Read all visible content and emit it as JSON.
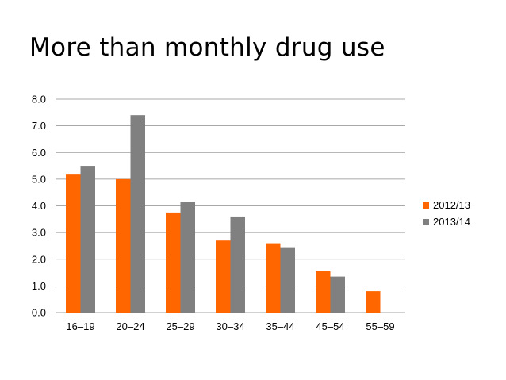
{
  "chart_data": {
    "type": "bar",
    "title": "More than monthly drug use",
    "categories": [
      "16–19",
      "20–24",
      "25–29",
      "30–34",
      "35–44",
      "45–54",
      "55–59"
    ],
    "series": [
      {
        "name": "2012/13",
        "color": "#ff6600",
        "values": [
          5.2,
          5.0,
          3.75,
          2.7,
          2.6,
          1.55,
          0.8
        ]
      },
      {
        "name": "2013/14",
        "color": "#808080",
        "values": [
          5.5,
          7.4,
          4.15,
          3.6,
          2.45,
          1.35,
          null
        ]
      }
    ],
    "y_ticks": [
      "0.0",
      "1.0",
      "2.0",
      "3.0",
      "4.0",
      "5.0",
      "6.0",
      "7.0",
      "8.0"
    ],
    "ylim": [
      0,
      8
    ],
    "grid": true,
    "legend_position": "right"
  }
}
